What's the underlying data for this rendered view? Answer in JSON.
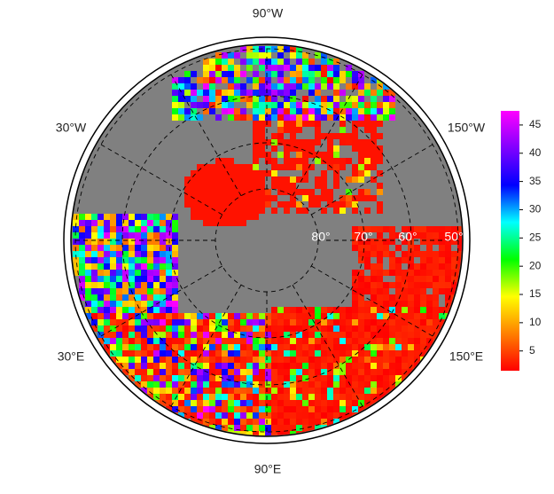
{
  "map": {
    "longitude_labels": [
      "90°W",
      "150°W",
      "30°W",
      "30°E",
      "150°E",
      "90°E"
    ],
    "latitude_labels": [
      "80°",
      "70°",
      "60°",
      "50°"
    ],
    "colorbar": {
      "lim": [
        1.5,
        47.5
      ],
      "ticks": [
        5,
        10,
        15,
        20,
        25,
        30,
        35,
        40,
        45
      ],
      "colors": [
        "#ff0000",
        "#ff8000",
        "#ffff00",
        "#00ff00",
        "#00ffff",
        "#0000ff",
        "#8000ff",
        "#ff00ff"
      ]
    }
  }
}
